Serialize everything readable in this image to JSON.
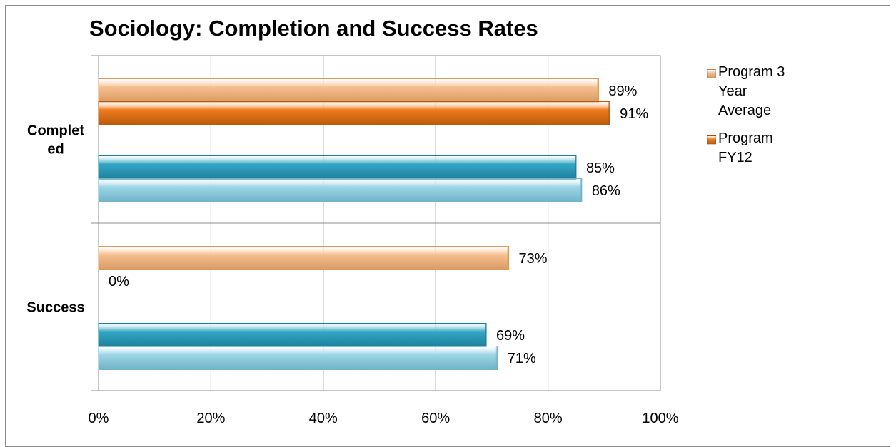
{
  "chart_data": {
    "type": "bar",
    "orientation": "horizontal",
    "title": "Sociology: Completion and Success Rates",
    "categories": [
      "Complet ed",
      "Success"
    ],
    "category_lines": [
      [
        "Complet",
        "ed"
      ],
      [
        "Success"
      ]
    ],
    "xlim": [
      0,
      100
    ],
    "x_ticks": [
      "0%",
      "20%",
      "40%",
      "60%",
      "80%",
      "100%"
    ],
    "grid": true,
    "legend_position": "right",
    "series": [
      {
        "name": "Program 3 Year Average",
        "values": [
          89,
          73
        ],
        "labels": [
          "89%",
          "73%"
        ],
        "color": "#f7bf8f",
        "color_dark": "#d99a63"
      },
      {
        "name": "Program FY12",
        "values": [
          91,
          0
        ],
        "labels": [
          "91%",
          "0%"
        ],
        "color": "#ef7b1c",
        "color_dark": "#b85a0c"
      },
      {
        "name": "",
        "values": [
          85,
          69
        ],
        "labels": [
          "85%",
          "69%"
        ],
        "color": "#34a7c6",
        "color_dark": "#1c7f9b"
      },
      {
        "name": "",
        "values": [
          86,
          71
        ],
        "labels": [
          "86%",
          "71%"
        ],
        "color": "#9ed6e6",
        "color_dark": "#6fb3c8"
      }
    ]
  }
}
